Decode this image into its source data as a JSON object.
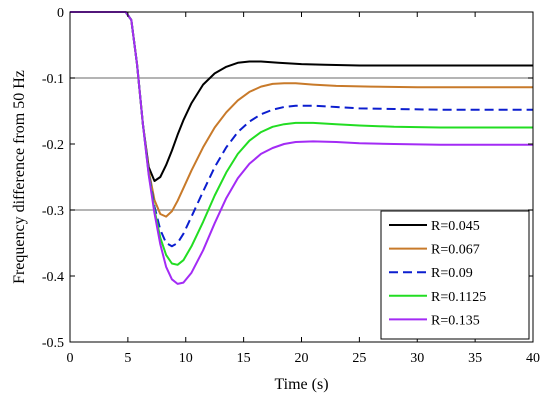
{
  "chart_data": {
    "type": "line",
    "xlabel": "Time (s)",
    "ylabel": "Frequency difference from 50 Hz",
    "xlim": [
      0,
      40
    ],
    "ylim": [
      -0.5,
      0
    ],
    "xticks": [
      0,
      5,
      10,
      15,
      20,
      25,
      30,
      35,
      40
    ],
    "yticks": [
      0,
      -0.1,
      -0.2,
      -0.3,
      -0.4,
      -0.5
    ],
    "xtick_labels": [
      "0",
      "5",
      "10",
      "15",
      "20",
      "25",
      "30",
      "35",
      "40"
    ],
    "ytick_labels": [
      "0",
      "-0.1",
      "-0.2",
      "-0.3",
      "-0.4",
      "-0.5"
    ],
    "reference_lines": [
      -0.1,
      -0.3
    ],
    "grid": false,
    "legend_position": "bottom-right",
    "series": [
      {
        "name": "R=0.045",
        "color": "#000000",
        "dash": "solid",
        "x": [
          0,
          4.8,
          5.3,
          5.8,
          6.3,
          6.8,
          7.3,
          7.8,
          8.3,
          8.8,
          9.3,
          9.8,
          10.5,
          11.5,
          12.5,
          13.5,
          14.5,
          15.5,
          16.5,
          18,
          20,
          22,
          25,
          30,
          35,
          40
        ],
        "y": [
          0,
          0,
          -0.012,
          -0.08,
          -0.17,
          -0.235,
          -0.256,
          -0.25,
          -0.232,
          -0.21,
          -0.186,
          -0.164,
          -0.138,
          -0.11,
          -0.093,
          -0.083,
          -0.077,
          -0.075,
          -0.075,
          -0.077,
          -0.079,
          -0.08,
          -0.081,
          -0.081,
          -0.081,
          -0.081
        ]
      },
      {
        "name": "R=0.067",
        "color": "#c87a2a",
        "dash": "solid",
        "x": [
          0,
          4.8,
          5.3,
          5.8,
          6.3,
          6.8,
          7.3,
          7.8,
          8.3,
          8.8,
          9.3,
          9.8,
          10.5,
          11.5,
          12.5,
          13.5,
          14.5,
          15.5,
          16.5,
          17.5,
          18.5,
          19.5,
          21,
          23,
          26,
          30,
          35,
          40
        ],
        "y": [
          0,
          0,
          -0.012,
          -0.08,
          -0.17,
          -0.24,
          -0.285,
          -0.306,
          -0.31,
          -0.302,
          -0.286,
          -0.267,
          -0.24,
          -0.205,
          -0.175,
          -0.152,
          -0.134,
          -0.121,
          -0.113,
          -0.109,
          -0.108,
          -0.108,
          -0.11,
          -0.112,
          -0.113,
          -0.114,
          -0.114,
          -0.114
        ]
      },
      {
        "name": "R=0.09",
        "color": "#0c1ecf",
        "dash": "dashed",
        "x": [
          0,
          4.8,
          5.3,
          5.8,
          6.3,
          6.8,
          7.3,
          7.8,
          8.3,
          8.8,
          9.3,
          9.8,
          10.5,
          11.5,
          12.5,
          13.5,
          14.5,
          15.5,
          16.5,
          17.5,
          18.5,
          19.5,
          21,
          23,
          25,
          28,
          32,
          36,
          40
        ],
        "y": [
          0,
          0,
          -0.012,
          -0.08,
          -0.17,
          -0.243,
          -0.295,
          -0.33,
          -0.35,
          -0.355,
          -0.35,
          -0.336,
          -0.31,
          -0.272,
          -0.235,
          -0.205,
          -0.182,
          -0.166,
          -0.155,
          -0.148,
          -0.144,
          -0.142,
          -0.142,
          -0.144,
          -0.146,
          -0.147,
          -0.148,
          -0.148,
          -0.148
        ]
      },
      {
        "name": "R=0.1125",
        "color": "#22dd22",
        "dash": "solid",
        "x": [
          0,
          4.8,
          5.3,
          5.8,
          6.3,
          6.8,
          7.3,
          7.8,
          8.3,
          8.8,
          9.3,
          9.8,
          10.5,
          11.5,
          12.5,
          13.5,
          14.5,
          15.5,
          16.5,
          17.5,
          18.5,
          19.5,
          21,
          23,
          25,
          28,
          32,
          36,
          40
        ],
        "y": [
          0,
          0,
          -0.012,
          -0.08,
          -0.17,
          -0.245,
          -0.3,
          -0.342,
          -0.368,
          -0.381,
          -0.383,
          -0.376,
          -0.355,
          -0.318,
          -0.278,
          -0.243,
          -0.215,
          -0.195,
          -0.182,
          -0.174,
          -0.17,
          -0.168,
          -0.168,
          -0.17,
          -0.172,
          -0.174,
          -0.175,
          -0.175,
          -0.175
        ]
      },
      {
        "name": "R=0.135",
        "color": "#a32bf5",
        "dash": "solid",
        "x": [
          0,
          4.8,
          5.3,
          5.8,
          6.3,
          6.8,
          7.3,
          7.8,
          8.3,
          8.8,
          9.3,
          9.8,
          10.5,
          11.5,
          12.5,
          13.5,
          14.5,
          15.5,
          16.5,
          17.5,
          18.5,
          19.5,
          21,
          23,
          25,
          28,
          32,
          36,
          40
        ],
        "y": [
          0,
          0,
          -0.012,
          -0.08,
          -0.17,
          -0.247,
          -0.305,
          -0.352,
          -0.386,
          -0.405,
          -0.412,
          -0.41,
          -0.395,
          -0.361,
          -0.32,
          -0.282,
          -0.252,
          -0.23,
          -0.215,
          -0.206,
          -0.2,
          -0.197,
          -0.196,
          -0.197,
          -0.199,
          -0.2,
          -0.201,
          -0.201,
          -0.201
        ]
      }
    ]
  }
}
